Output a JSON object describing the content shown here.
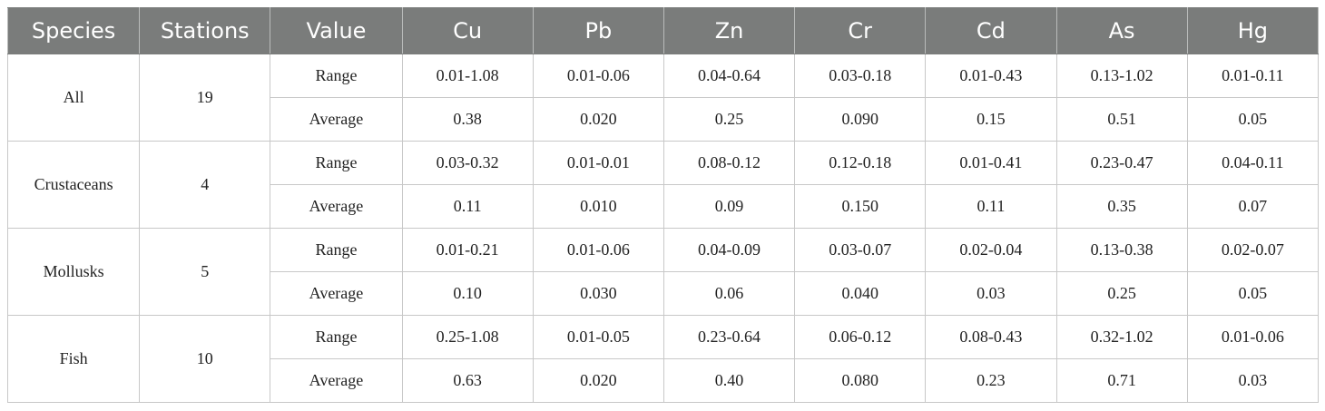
{
  "headers": [
    "Species",
    "Stations",
    "Value",
    "Cu",
    "Pb",
    "Zn",
    "Cr",
    "Cd",
    "As",
    "Hg"
  ],
  "groups": [
    {
      "species": "All",
      "stations": "19",
      "rows": [
        {
          "label": "Range",
          "values": [
            "0.01-1.08",
            "0.01-0.06",
            "0.04-0.64",
            "0.03-0.18",
            "0.01-0.43",
            "0.13-1.02",
            "0.01-0.11"
          ]
        },
        {
          "label": "Average",
          "values": [
            "0.38",
            "0.020",
            "0.25",
            "0.090",
            "0.15",
            "0.51",
            "0.05"
          ]
        }
      ]
    },
    {
      "species": "Crustaceans",
      "stations": "4",
      "rows": [
        {
          "label": "Range",
          "values": [
            "0.03-0.32",
            "0.01-0.01",
            "0.08-0.12",
            "0.12-0.18",
            "0.01-0.41",
            "0.23-0.47",
            "0.04-0.11"
          ]
        },
        {
          "label": "Average",
          "values": [
            "0.11",
            "0.010",
            "0.09",
            "0.150",
            "0.11",
            "0.35",
            "0.07"
          ]
        }
      ]
    },
    {
      "species": "Mollusks",
      "stations": "5",
      "rows": [
        {
          "label": "Range",
          "values": [
            "0.01-0.21",
            "0.01-0.06",
            "0.04-0.09",
            "0.03-0.07",
            "0.02-0.04",
            "0.13-0.38",
            "0.02-0.07"
          ]
        },
        {
          "label": "Average",
          "values": [
            "0.10",
            "0.030",
            "0.06",
            "0.040",
            "0.03",
            "0.25",
            "0.05"
          ]
        }
      ]
    },
    {
      "species": "Fish",
      "stations": "10",
      "rows": [
        {
          "label": "Range",
          "values": [
            "0.25-1.08",
            "0.01-0.05",
            "0.23-0.64",
            "0.06-0.12",
            "0.08-0.43",
            "0.32-1.02",
            "0.01-0.06"
          ]
        },
        {
          "label": "Average",
          "values": [
            "0.63",
            "0.020",
            "0.40",
            "0.080",
            "0.23",
            "0.71",
            "0.03"
          ]
        }
      ]
    }
  ]
}
